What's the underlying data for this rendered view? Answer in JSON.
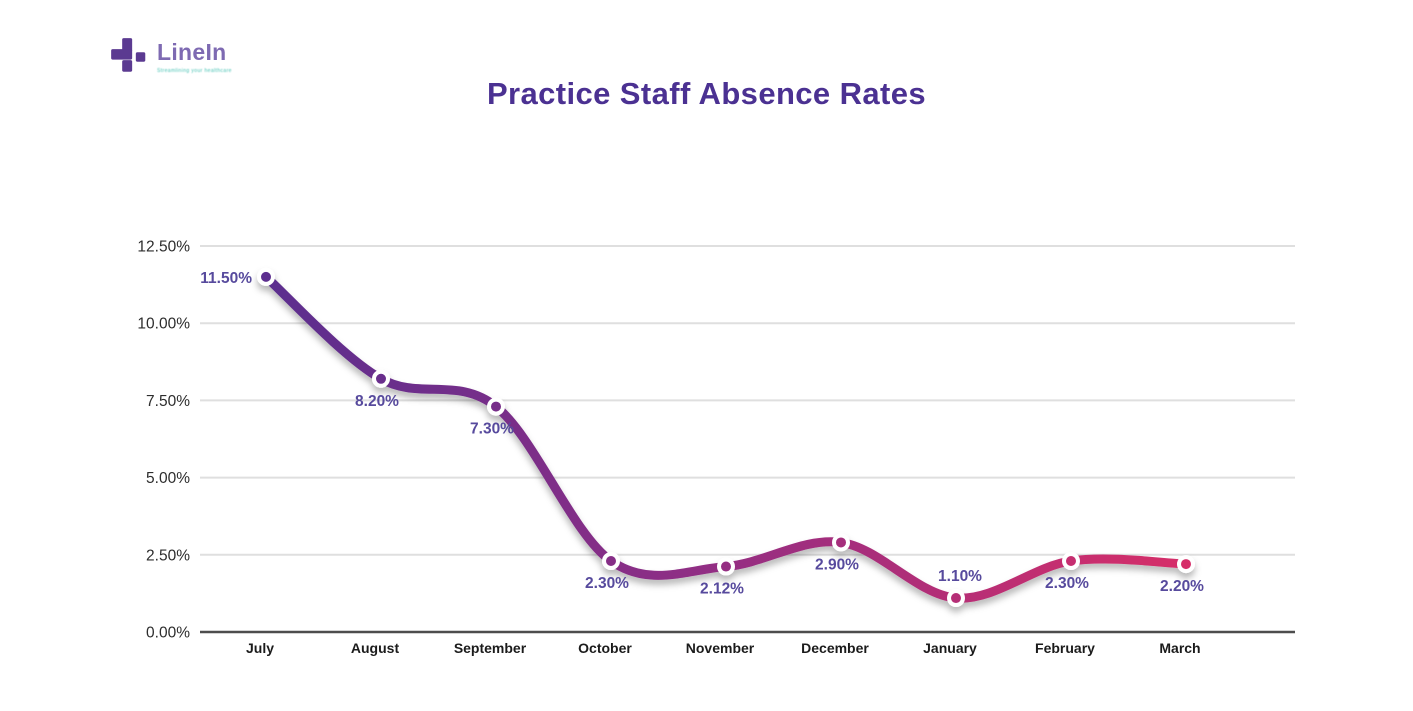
{
  "header": {
    "logo_text": "LineIn",
    "tagline": "Streamlining your healthcare",
    "logo_icon_color": "#5b3a91"
  },
  "chart_data": {
    "type": "line",
    "title": "Practice Staff Absence Rates",
    "title_color": "#4b3192",
    "categories": [
      "July",
      "August",
      "September",
      "October",
      "November",
      "December",
      "January",
      "February",
      "March"
    ],
    "values": [
      11.5,
      8.2,
      7.3,
      2.3,
      2.12,
      2.9,
      1.1,
      2.3,
      2.2
    ],
    "point_labels": [
      "11.50%",
      "8.20%",
      "7.30%",
      "2.30%",
      "2.12%",
      "2.90%",
      "1.10%",
      "2.30%",
      "2.20%"
    ],
    "label_positions": [
      "left",
      "below",
      "below",
      "below",
      "below",
      "below",
      "above",
      "below",
      "below"
    ],
    "y_ticks": [
      {
        "label": "12.50%",
        "value": 12.5
      },
      {
        "label": "10.00%",
        "value": 10.0
      },
      {
        "label": "7.50%",
        "value": 7.5
      },
      {
        "label": "5.00%",
        "value": 5.0
      },
      {
        "label": "2.50%",
        "value": 2.5
      },
      {
        "label": "0.00%",
        "value": 0.0
      }
    ],
    "ylim": [
      0,
      12.5
    ],
    "grid": true,
    "legend": false,
    "line_gradient": [
      "#5b2d8e",
      "#8e2d85",
      "#d62e69"
    ],
    "data_label_color": "#574a9d",
    "axis_label_color": "#1b1b1b",
    "tick_label_color": "#2d2d2d",
    "gridline_color": "#dfdfdf",
    "axis_line_color": "#4d4d4d",
    "marker_ring_color": "#ffffff"
  }
}
